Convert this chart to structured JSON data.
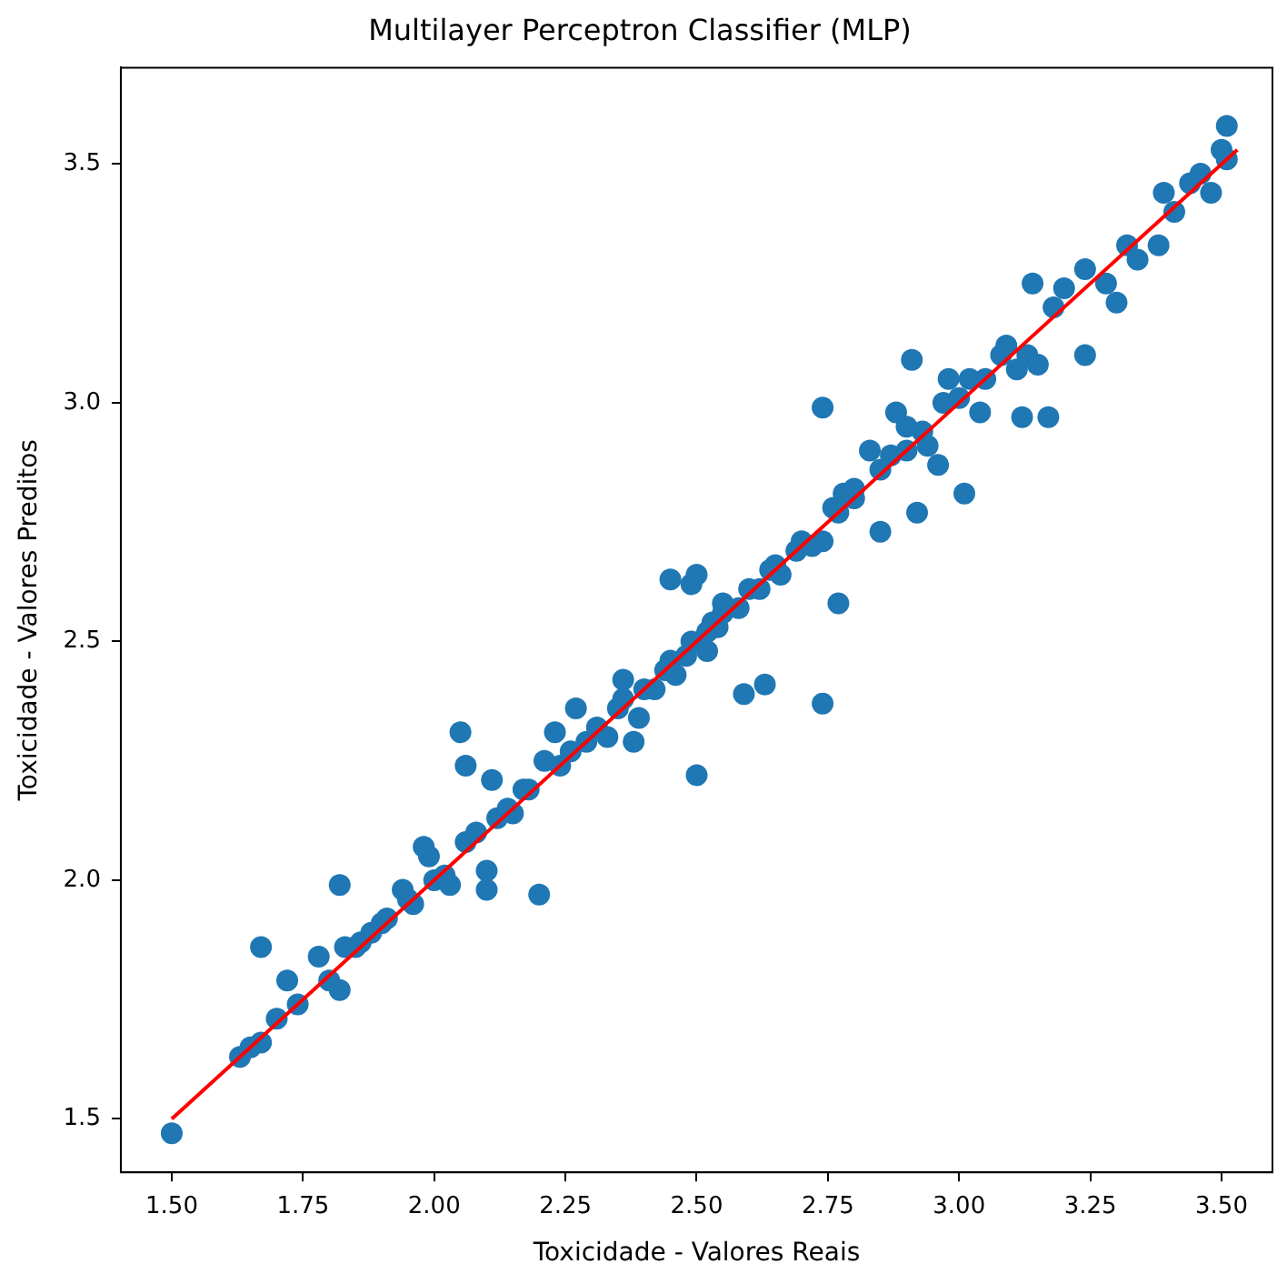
{
  "chart_data": {
    "type": "scatter",
    "title": "Multilayer Perceptron Classifier (MLP)",
    "xlabel": "Toxicidade - Valores Reais",
    "ylabel": "Toxicidade - Valores Preditos",
    "xlim": [
      1.403,
      3.597
    ],
    "ylim": [
      1.388,
      3.702
    ],
    "xticks": [
      {
        "value": 1.5,
        "label": "1.50"
      },
      {
        "value": 1.75,
        "label": "1.75"
      },
      {
        "value": 2,
        "label": "2.00"
      },
      {
        "value": 2.25,
        "label": "2.25"
      },
      {
        "value": 2.5,
        "label": "2.50"
      },
      {
        "value": 2.75,
        "label": "2.75"
      },
      {
        "value": 3,
        "label": "3.00"
      },
      {
        "value": 3.25,
        "label": "3.25"
      },
      {
        "value": 3.5,
        "label": "3.50"
      }
    ],
    "yticks": [
      1.5,
      {
        "value": 2,
        "label": "2.0"
      },
      2.5,
      {
        "value": 3,
        "label": "3.0"
      },
      3.5
    ],
    "grid": false,
    "legend": false,
    "marker": "circle",
    "series": [
      {
        "type": "scatter",
        "color": "#1f77b4",
        "x": [
          1.5,
          1.63,
          1.65,
          1.67,
          1.67,
          1.7,
          1.72,
          1.74,
          1.78,
          1.8,
          1.82,
          1.82,
          1.83,
          1.86,
          1.88,
          1.9,
          1.91,
          1.94,
          1.96,
          1.98,
          1.99,
          2.0,
          2.02,
          2.03,
          2.05,
          2.06,
          2.06,
          2.08,
          2.1,
          2.1,
          2.11,
          2.12,
          2.15,
          2.17,
          2.2,
          2.21,
          2.23,
          2.24,
          2.27,
          2.29,
          2.31,
          2.33,
          2.36,
          2.36,
          2.38,
          2.39,
          2.42,
          2.44,
          2.45,
          2.46,
          2.49,
          2.5,
          2.49,
          2.5,
          2.52,
          2.53,
          2.54,
          2.55,
          2.59,
          2.62,
          2.63,
          2.64,
          2.66,
          2.69,
          2.74,
          2.74,
          2.74,
          2.77,
          2.77,
          2.78,
          2.8,
          2.83,
          2.85,
          2.87,
          2.88,
          2.9,
          2.91,
          2.92,
          2.94,
          2.96,
          2.97,
          2.98,
          3.01,
          3.02,
          3.04,
          3.08,
          3.09,
          3.11,
          3.12,
          3.13,
          3.14,
          3.15,
          3.17,
          3.18,
          3.2,
          3.24,
          3.24,
          3.28,
          3.3,
          3.32,
          3.34,
          3.38,
          3.39,
          3.41,
          3.44,
          3.46,
          3.48,
          3.5,
          3.51,
          3.51,
          2.35,
          2.4,
          2.45,
          2.48,
          2.52,
          2.55,
          2.58,
          2.6,
          2.65,
          2.7,
          2.72,
          2.76,
          2.8,
          2.85,
          2.9,
          2.93,
          3.0,
          3.05,
          2.26,
          2.18,
          2.14,
          1.95,
          1.85
        ],
        "values": [
          1.47,
          1.63,
          1.65,
          1.66,
          1.86,
          1.71,
          1.79,
          1.74,
          1.84,
          1.79,
          1.99,
          1.77,
          1.86,
          1.87,
          1.89,
          1.91,
          1.92,
          1.98,
          1.95,
          2.07,
          2.05,
          2.0,
          2.01,
          1.99,
          2.31,
          2.24,
          2.08,
          2.1,
          2.02,
          1.98,
          2.21,
          2.13,
          2.14,
          2.19,
          1.97,
          2.25,
          2.31,
          2.24,
          2.36,
          2.29,
          2.32,
          2.3,
          2.42,
          2.38,
          2.29,
          2.34,
          2.4,
          2.44,
          2.63,
          2.43,
          2.62,
          2.64,
          2.5,
          2.22,
          2.48,
          2.54,
          2.53,
          2.58,
          2.39,
          2.61,
          2.41,
          2.65,
          2.64,
          2.69,
          2.71,
          2.99,
          2.37,
          2.58,
          2.77,
          2.81,
          2.82,
          2.9,
          2.73,
          2.89,
          2.98,
          2.95,
          3.09,
          2.77,
          2.91,
          2.87,
          3.0,
          3.05,
          2.81,
          3.05,
          2.98,
          3.1,
          3.12,
          3.07,
          2.97,
          3.1,
          3.25,
          3.08,
          2.97,
          3.2,
          3.24,
          3.1,
          3.28,
          3.25,
          3.21,
          3.33,
          3.3,
          3.33,
          3.44,
          3.4,
          3.46,
          3.48,
          3.44,
          3.53,
          3.58,
          3.51,
          2.36,
          2.4,
          2.46,
          2.47,
          2.52,
          2.56,
          2.57,
          2.61,
          2.66,
          2.71,
          2.7,
          2.78,
          2.8,
          2.86,
          2.9,
          2.94,
          3.01,
          3.05,
          2.27,
          2.19,
          2.15,
          1.96,
          1.86
        ]
      },
      {
        "type": "line",
        "color": "#ff0000",
        "marker": "none",
        "line_style": "solid",
        "x": [
          1.5,
          3.53
        ],
        "values": [
          1.5,
          3.53
        ]
      }
    ]
  }
}
